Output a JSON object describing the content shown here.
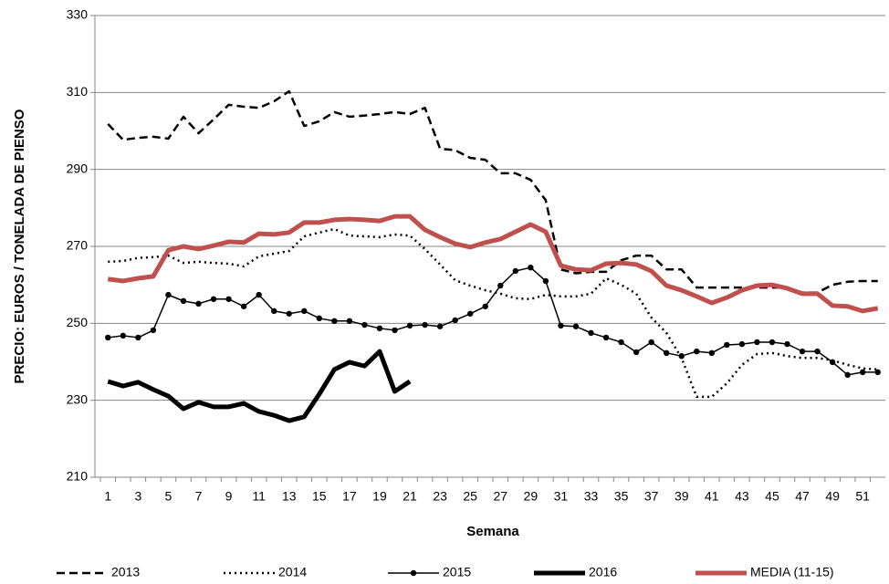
{
  "chart_data": {
    "type": "line",
    "y_label": "PRECIO: EUROS / TONELADA DE PIENSO",
    "x_label": "Semana",
    "categories": [
      1,
      null,
      3,
      null,
      5,
      null,
      7,
      null,
      9,
      null,
      11,
      null,
      13,
      null,
      15,
      null,
      17,
      null,
      19,
      null,
      21,
      null,
      23,
      null,
      25,
      null,
      27,
      null,
      29,
      null,
      31,
      null,
      33,
      null,
      35,
      null,
      37,
      null,
      39,
      null,
      41,
      null,
      43,
      null,
      45,
      null,
      47,
      null,
      49,
      null,
      51,
      null
    ],
    "ylim": [
      210,
      330
    ],
    "yticks": [
      210,
      230,
      250,
      270,
      290,
      310,
      330
    ],
    "grid": true,
    "legend": "bottom",
    "series": [
      {
        "name": "2013",
        "color": "#000000",
        "dash": "dashed",
        "width": 2.5,
        "marker": false,
        "values": [
          301.8,
          297.7,
          298.2,
          298.5,
          298,
          303.7,
          299.4,
          303,
          306.8,
          306.3,
          306,
          307.7,
          310.3,
          301.3,
          302.5,
          304.9,
          303.7,
          304,
          304.4,
          304.9,
          304.4,
          306,
          295.4,
          295,
          293,
          292.5,
          289,
          289,
          287.3,
          282,
          264,
          263,
          263.4,
          263.4,
          266.4,
          267.6,
          267.6,
          264,
          264,
          259.3,
          259.3,
          259.3,
          259.3,
          259.3,
          259.3,
          259.3,
          258,
          258,
          260,
          260.8,
          261,
          261
        ]
      },
      {
        "name": "2014",
        "color": "#000000",
        "dash": "dotted",
        "width": 2.5,
        "marker": false,
        "values": [
          266,
          266.2,
          267,
          267.2,
          267.6,
          265.7,
          266,
          265.7,
          265.5,
          264.8,
          267.4,
          268.1,
          268.8,
          272.6,
          273.6,
          274.5,
          272.8,
          272.6,
          272.4,
          273.1,
          272.8,
          269.3,
          265.3,
          261.2,
          259.8,
          258.6,
          257.7,
          256.5,
          256.3,
          257.4,
          257,
          257,
          257.7,
          261.7,
          260,
          257.7,
          251.5,
          247.5,
          241,
          230.9,
          230.9,
          234.4,
          239.2,
          242,
          242.3,
          241.5,
          241,
          241,
          240.4,
          239.2,
          238.3,
          238
        ]
      },
      {
        "name": "2015",
        "color": "#000000",
        "dash": "solid",
        "width": 1.5,
        "marker": true,
        "values": [
          246.3,
          246.8,
          246.3,
          248.2,
          257.4,
          255.8,
          255.1,
          256.3,
          256.3,
          254.4,
          257.4,
          253.2,
          252.5,
          253.2,
          251.3,
          250.6,
          250.6,
          249.6,
          248.7,
          248.2,
          249.4,
          249.6,
          249.2,
          250.8,
          252.5,
          254.4,
          259.8,
          263.6,
          264.5,
          261,
          249.4,
          249.2,
          247.5,
          246.3,
          245.1,
          242.5,
          245.1,
          242.3,
          241.5,
          242.7,
          242.3,
          244.4,
          244.6,
          245.1,
          245.1,
          244.6,
          242.7,
          242.7,
          239.9,
          236.6,
          237.3,
          237.3
        ]
      },
      {
        "name": "2016",
        "color": "#000000",
        "dash": "solid",
        "width": 5,
        "marker": false,
        "values": [
          234.9,
          233.7,
          234.7,
          232.8,
          231.1,
          227.8,
          229.5,
          228.3,
          228.3,
          229.2,
          227.1,
          226.1,
          224.7,
          225.7,
          231.6,
          238,
          239.9,
          238.9,
          242.7,
          232.3,
          234.9,
          null,
          null,
          null,
          null,
          null,
          null,
          null,
          null,
          null,
          null,
          null,
          null,
          null,
          null,
          null,
          null,
          null,
          null,
          null,
          null,
          null,
          null,
          null,
          null,
          null,
          null,
          null,
          null,
          null,
          null,
          null
        ]
      },
      {
        "name": "MEDIA (11-15)",
        "color": "#c0504d",
        "dash": "solid",
        "width": 5,
        "marker": false,
        "values": [
          261.5,
          261,
          261.7,
          262.2,
          269,
          270,
          269.3,
          270.2,
          271.2,
          271,
          273.3,
          273.1,
          273.6,
          276.2,
          276.2,
          276.9,
          277.1,
          276.9,
          276.6,
          277.8,
          277.8,
          274.3,
          272.4,
          270.7,
          269.8,
          271,
          271.9,
          273.8,
          275.7,
          273.8,
          265,
          264,
          263.8,
          265.5,
          265.7,
          265.3,
          263.6,
          259.8,
          258.6,
          257,
          255.3,
          256.7,
          258.6,
          259.8,
          260,
          259.1,
          257.7,
          257.7,
          254.6,
          254.4,
          253.2,
          253.9
        ]
      }
    ]
  }
}
